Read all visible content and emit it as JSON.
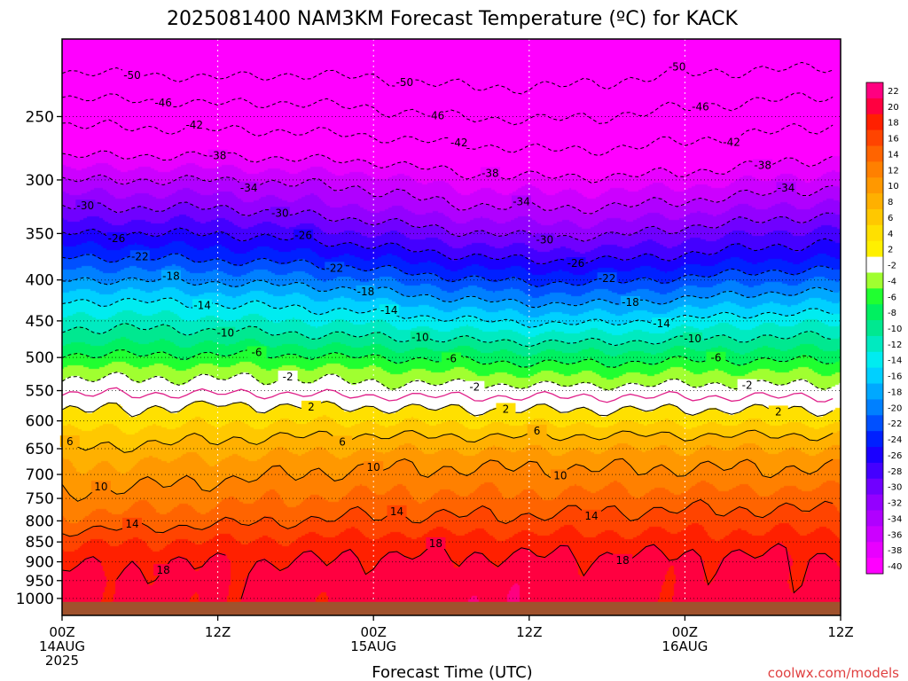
{
  "title": "2025081400 NAM3KM Forecast Temperature (ºC) for KACK",
  "credit": "coolwx.com/models",
  "credit_color": "#e04040",
  "chart_data": {
    "type": "heatmap",
    "title": "2025081400 NAM3KM Forecast Temperature (ºC) for KACK",
    "xlabel": "Forecast Time (UTC)",
    "ylabel": "",
    "xlim_hours": [
      0,
      60
    ],
    "ylim_hpa": [
      1050,
      200
    ],
    "y_scale": "log",
    "y_ticks": [
      250,
      300,
      350,
      400,
      450,
      500,
      550,
      600,
      650,
      700,
      750,
      800,
      850,
      900,
      950,
      1000
    ],
    "x_ticks": [
      {
        "hour": 0,
        "l1": "00Z",
        "l2": "14AUG",
        "l3": "2025"
      },
      {
        "hour": 12,
        "l1": "12Z",
        "l2": "",
        "l3": ""
      },
      {
        "hour": 24,
        "l1": "00Z",
        "l2": "15AUG",
        "l3": ""
      },
      {
        "hour": 36,
        "l1": "12Z",
        "l2": "",
        "l3": ""
      },
      {
        "hour": 48,
        "l1": "00Z",
        "l2": "16AUG",
        "l3": ""
      },
      {
        "hour": 60,
        "l1": "12Z",
        "l2": "",
        "l3": ""
      }
    ],
    "grid": "dotted",
    "colorbar": {
      "position": "right",
      "levels": [
        -40,
        -38,
        -36,
        -34,
        -32,
        -30,
        -28,
        -26,
        -24,
        -22,
        -20,
        -18,
        -16,
        -14,
        -12,
        -10,
        -8,
        -6,
        -4,
        -2,
        2,
        4,
        6,
        8,
        10,
        12,
        14,
        16,
        18,
        20,
        22
      ],
      "colors": [
        "#ff00ff",
        "#e800ff",
        "#cc00ff",
        "#b000ff",
        "#9400ff",
        "#7000ff",
        "#4400ff",
        "#1a00ff",
        "#0020ff",
        "#0050ff",
        "#0080ff",
        "#00a8ff",
        "#00d0ff",
        "#00ecf0",
        "#00eac0",
        "#00e890",
        "#00f060",
        "#20ff30",
        "#a0ff30",
        "#ffffff",
        "#fff000",
        "#ffe000",
        "#ffc800",
        "#ffb000",
        "#ff9800",
        "#ff8000",
        "#ff6400",
        "#ff4400",
        "#ff2000",
        "#ff0040",
        "#ff0080"
      ]
    },
    "temperature_profile": {
      "pressure_hpa": [
        200,
        250,
        275,
        300,
        325,
        350,
        375,
        400,
        425,
        450,
        475,
        500,
        525,
        550,
        575,
        600,
        625,
        650,
        675,
        700,
        750,
        800,
        850,
        900,
        950,
        1000,
        1050
      ],
      "hour": [
        0,
        6,
        12,
        18,
        24,
        30,
        36,
        42,
        48,
        54,
        60
      ],
      "temp_c": [
        [
          -55,
          -55.5,
          -56,
          -55,
          -55,
          -56,
          -56,
          -55,
          -54,
          -54,
          -54
        ],
        [
          -43,
          -43.5,
          -44,
          -44,
          -45,
          -46,
          -46.5,
          -46,
          -45,
          -44,
          -43
        ],
        [
          -39,
          -39,
          -39,
          -39.5,
          -40,
          -41,
          -42,
          -42,
          -41,
          -40,
          -39
        ],
        [
          -34,
          -34,
          -34,
          -34.5,
          -35,
          -37,
          -37.5,
          -37.5,
          -37,
          -36,
          -35
        ],
        [
          -30,
          -30,
          -30,
          -31,
          -32,
          -33.5,
          -34,
          -34,
          -33,
          -32,
          -31
        ],
        [
          -26,
          -26,
          -26,
          -27,
          -28,
          -29.5,
          -30.5,
          -30.5,
          -29,
          -28,
          -27
        ],
        [
          -22,
          -22,
          -22.5,
          -23,
          -24,
          -25.5,
          -26.5,
          -26.5,
          -25.5,
          -24.5,
          -24
        ],
        [
          -18,
          -18,
          -18.5,
          -19,
          -20,
          -21.5,
          -22.5,
          -22.5,
          -21.5,
          -20.5,
          -20
        ],
        [
          -14,
          -14,
          -14.5,
          -15,
          -16,
          -17.5,
          -18.5,
          -18.5,
          -17.5,
          -16.5,
          -16
        ],
        [
          -11,
          -11,
          -11.5,
          -12,
          -12.5,
          -13.5,
          -14.5,
          -14.5,
          -13.5,
          -12.5,
          -12.5
        ],
        [
          -8.5,
          -8.5,
          -8.5,
          -9,
          -9.5,
          -10,
          -10.5,
          -10.5,
          -10,
          -9.5,
          -9.5
        ],
        [
          -5.5,
          -5.5,
          -5.5,
          -5.5,
          -6,
          -6.5,
          -7,
          -7,
          -6.5,
          -6.5,
          -6.5
        ],
        [
          -2.5,
          -2.5,
          -2.5,
          -2.5,
          -3,
          -3.5,
          -4,
          -4,
          -3.5,
          -3.5,
          -3.5
        ],
        [
          -0.5,
          -0.5,
          -0.5,
          -0.5,
          -1,
          -1,
          -1,
          -1,
          -1,
          -1,
          -1
        ],
        [
          1.5,
          1.8,
          2.2,
          2,
          1.8,
          1.6,
          1.5,
          1.5,
          1.5,
          1.5,
          1.5
        ],
        [
          2.8,
          3.2,
          3.6,
          3.8,
          3.8,
          3.5,
          3.5,
          3.5,
          3.5,
          3.5,
          3.5
        ],
        [
          4.5,
          5,
          5.5,
          5.8,
          6,
          5.8,
          5.8,
          6,
          6,
          6,
          6
        ],
        [
          6,
          6.5,
          7,
          7.5,
          7.8,
          7.8,
          7.8,
          8,
          8,
          8,
          7.8
        ],
        [
          7.5,
          8,
          8.5,
          9,
          9.5,
          9.5,
          9.5,
          9.5,
          9.5,
          9.5,
          9.5
        ],
        [
          8.5,
          9,
          9.5,
          10,
          10.5,
          10.5,
          10.5,
          10.5,
          10.5,
          10.5,
          10.5
        ],
        [
          10.5,
          11,
          11.5,
          12,
          12.5,
          12.5,
          12.5,
          12.8,
          13,
          13,
          13
        ],
        [
          12.5,
          13,
          13.5,
          14,
          14.5,
          14.5,
          14.5,
          14.8,
          15,
          15,
          15
        ],
        [
          15.5,
          16,
          16.2,
          16.5,
          17,
          17,
          17,
          17,
          17,
          17,
          17
        ],
        [
          17.5,
          17.8,
          18,
          18,
          18.5,
          18.5,
          18.5,
          18.5,
          18.5,
          18.5,
          18.5
        ],
        [
          19,
          18.5,
          18.5,
          19,
          19,
          19.2,
          19,
          19,
          18.5,
          18.5,
          18.5
        ],
        [
          19,
          18.5,
          18.5,
          18.5,
          19,
          19.5,
          19.5,
          19,
          18.5,
          19,
          19
        ],
        [
          19,
          18.5,
          18.5,
          18.5,
          19,
          19.5,
          19.5,
          19,
          18.5,
          19,
          19
        ]
      ]
    },
    "contours_labeled": [
      -50,
      -46,
      -42,
      -38,
      -34,
      -30,
      -26,
      -22,
      -18,
      -14,
      -10,
      -6,
      -2,
      2,
      6,
      10,
      14,
      18
    ],
    "contour_style": {
      "below_zero": "dashed",
      "zero": "#e0208a",
      "above_zero": "solid"
    },
    "ground_color": "#a0522d"
  }
}
